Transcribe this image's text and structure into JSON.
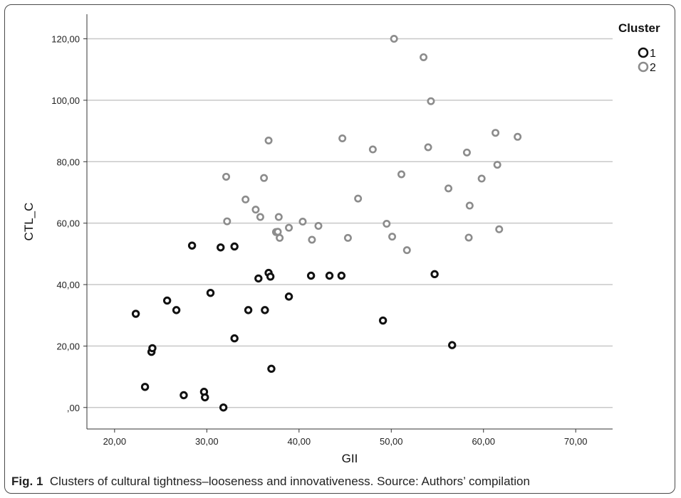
{
  "caption": {
    "label": "Fig. 1",
    "text": "Clusters of cultural tightness–looseness and innovativeness. Source: Authors’ compilation"
  },
  "chart_data": {
    "type": "scatter",
    "title": "",
    "xlabel": "GII",
    "ylabel": "CTL_C",
    "xlim": [
      17,
      74
    ],
    "ylim": [
      -7,
      128
    ],
    "x_ticks": [
      20,
      30,
      40,
      50,
      60,
      70
    ],
    "y_ticks": [
      0,
      20,
      40,
      60,
      80,
      100,
      120
    ],
    "x_tick_labels": [
      "20,00",
      "30,00",
      "40,00",
      "50,00",
      "60,00",
      "70,00"
    ],
    "y_tick_labels": [
      ",00",
      "20,00",
      "40,00",
      "60,00",
      "80,00",
      "100,00",
      "120,00"
    ],
    "grid": "horizontal",
    "legend": {
      "title": "Cluster",
      "position": "top-right"
    },
    "series": [
      {
        "name": "1",
        "color": "#111111",
        "points": [
          [
            22.3,
            30.5
          ],
          [
            23.3,
            6.7
          ],
          [
            24.0,
            18.1
          ],
          [
            24.1,
            19.3
          ],
          [
            25.7,
            34.8
          ],
          [
            26.7,
            31.7
          ],
          [
            27.5,
            4.0
          ],
          [
            28.4,
            52.7
          ],
          [
            29.7,
            5.1
          ],
          [
            29.8,
            3.3
          ],
          [
            30.4,
            37.3
          ],
          [
            31.5,
            52.1
          ],
          [
            31.8,
            0.0
          ],
          [
            33.0,
            52.4
          ],
          [
            33.0,
            22.5
          ],
          [
            34.5,
            31.7
          ],
          [
            35.6,
            42.0
          ],
          [
            36.3,
            31.7
          ],
          [
            36.7,
            43.8
          ],
          [
            36.9,
            42.6
          ],
          [
            37.0,
            12.6
          ],
          [
            38.9,
            36.1
          ],
          [
            41.3,
            42.9
          ],
          [
            43.3,
            42.9
          ],
          [
            44.6,
            42.9
          ],
          [
            49.1,
            28.3
          ],
          [
            54.7,
            43.4
          ],
          [
            56.6,
            20.3
          ]
        ]
      },
      {
        "name": "2",
        "color": "#8c8c8c",
        "points": [
          [
            32.1,
            75.1
          ],
          [
            32.2,
            60.6
          ],
          [
            34.2,
            67.7
          ],
          [
            35.3,
            64.4
          ],
          [
            35.8,
            62.0
          ],
          [
            36.2,
            74.7
          ],
          [
            36.7,
            86.9
          ],
          [
            37.5,
            57.1
          ],
          [
            37.7,
            57.2
          ],
          [
            37.8,
            62.0
          ],
          [
            37.9,
            55.2
          ],
          [
            38.9,
            58.5
          ],
          [
            40.4,
            60.5
          ],
          [
            41.4,
            54.6
          ],
          [
            42.1,
            59.1
          ],
          [
            44.7,
            87.6
          ],
          [
            45.3,
            55.2
          ],
          [
            46.4,
            68.0
          ],
          [
            48.0,
            84.0
          ],
          [
            49.5,
            59.8
          ],
          [
            50.1,
            55.6
          ],
          [
            50.3,
            120.0
          ],
          [
            51.1,
            75.9
          ],
          [
            51.7,
            51.2
          ],
          [
            53.5,
            114.0
          ],
          [
            54.0,
            84.7
          ],
          [
            54.3,
            99.7
          ],
          [
            56.2,
            71.3
          ],
          [
            58.2,
            83.0
          ],
          [
            58.4,
            55.3
          ],
          [
            58.5,
            65.7
          ],
          [
            59.8,
            74.5
          ],
          [
            61.3,
            89.4
          ],
          [
            61.5,
            79.0
          ],
          [
            61.7,
            58.0
          ],
          [
            63.7,
            88.1
          ]
        ]
      }
    ]
  }
}
